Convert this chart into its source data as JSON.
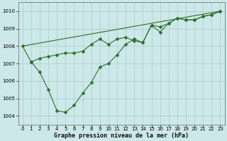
{
  "xlabel": "Graphe pression niveau de la mer (hPa)",
  "bg_color": "#cce8e8",
  "grid_color": "#aacccc",
  "line_color": "#2d6e2d",
  "xlim": [
    -0.5,
    23.5
  ],
  "ylim": [
    1003.5,
    1010.5
  ],
  "yticks": [
    1004,
    1005,
    1006,
    1007,
    1008,
    1009,
    1010
  ],
  "xticks": [
    0,
    1,
    2,
    3,
    4,
    5,
    6,
    7,
    8,
    9,
    10,
    11,
    12,
    13,
    14,
    15,
    16,
    17,
    18,
    19,
    20,
    21,
    22,
    23
  ],
  "series1_x": [
    0,
    23
  ],
  "series1_y": [
    1008.0,
    1010.0
  ],
  "series2_x": [
    0,
    1,
    2,
    3,
    4,
    5,
    6,
    7,
    8,
    9,
    10,
    11,
    12,
    13,
    14,
    15,
    16,
    17,
    18,
    19,
    20,
    21,
    22,
    23
  ],
  "series2_y": [
    1008.0,
    1007.1,
    1006.5,
    1005.5,
    1004.3,
    1004.2,
    1004.6,
    1005.3,
    1005.9,
    1006.8,
    1007.0,
    1007.5,
    1008.1,
    1008.4,
    1008.2,
    1009.2,
    1008.8,
    1009.3,
    1009.6,
    1009.5,
    1009.5,
    1009.7,
    1009.8,
    1010.0
  ],
  "series3_x": [
    1,
    2,
    3,
    4,
    5,
    6,
    7,
    8,
    9,
    10,
    11,
    12,
    13,
    14,
    15,
    16,
    17,
    18,
    19,
    20,
    21,
    22,
    23
  ],
  "series3_y": [
    1007.1,
    1007.3,
    1007.4,
    1007.5,
    1007.6,
    1007.6,
    1007.7,
    1008.1,
    1008.4,
    1008.1,
    1008.4,
    1008.5,
    1008.3,
    1008.2,
    1009.2,
    1009.1,
    1009.3,
    1009.6,
    1009.5,
    1009.5,
    1009.7,
    1009.8,
    1010.0
  ],
  "marker_style": "D",
  "marker_size": 2.5,
  "tick_fontsize": 5.0,
  "xlabel_fontsize": 6.0,
  "linewidth": 0.8
}
